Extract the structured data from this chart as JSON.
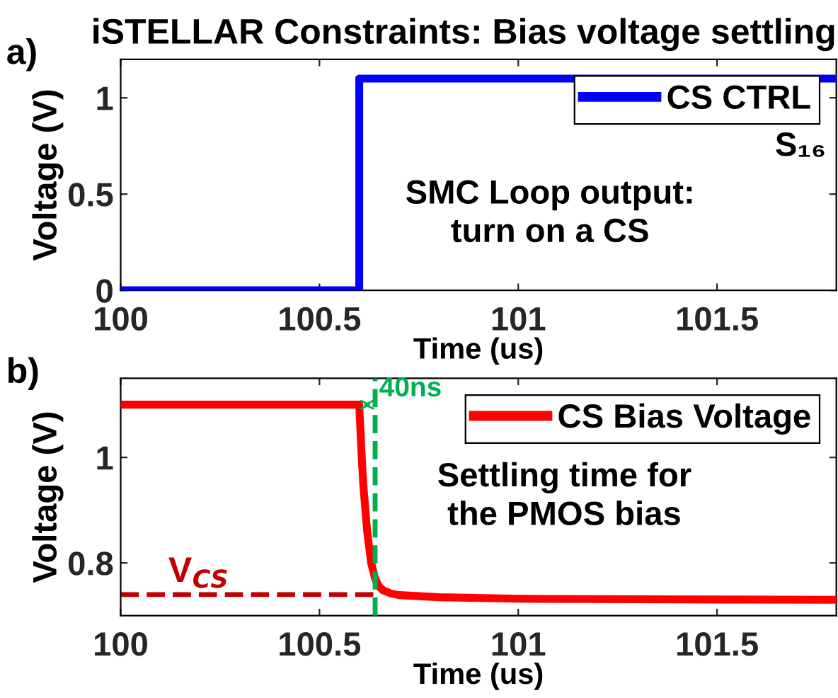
{
  "chart_data": [
    {
      "type": "line",
      "title": "iSTELLAR Constraints: Bias voltage settling",
      "xlabel": "Time (us)",
      "ylabel": "Voltage (V)",
      "x": [
        100,
        100.6,
        100.6,
        101.8
      ],
      "series": [
        {
          "name": "CS CTRL",
          "color": "#0000ff",
          "values": [
            0,
            0,
            1.1,
            1.1
          ]
        }
      ],
      "xlim": [
        100,
        101.8
      ],
      "xticks": [
        100,
        100.5,
        101,
        101.5
      ],
      "ylim": [
        0,
        1.2
      ],
      "yticks": [
        0,
        0.5,
        1
      ],
      "legend": "top right",
      "grid": false,
      "line_style": "solid",
      "marker": "none",
      "annotations": [
        "a)",
        {
          "text": "S₁₆"
        },
        "SMC Loop output:\nturn on a CS"
      ]
    },
    {
      "type": "line",
      "xlabel": "Time (us)",
      "ylabel": "Voltage (V)",
      "x": [
        100,
        100.6,
        100.605,
        100.61,
        100.62,
        100.63,
        100.64,
        100.65,
        100.66,
        100.68,
        100.7,
        100.8,
        101,
        101.3,
        101.8
      ],
      "series": [
        {
          "name": "CS Bias Voltage",
          "color": "#ff0000",
          "values": [
            1.1,
            1.1,
            1.02,
            0.95,
            0.86,
            0.8,
            0.77,
            0.755,
            0.748,
            0.742,
            0.739,
            0.735,
            0.732,
            0.731,
            0.73
          ]
        }
      ],
      "xlim": [
        100,
        101.8
      ],
      "xticks": [
        100,
        100.5,
        101,
        101.5
      ],
      "ylim": [
        0.7,
        1.15
      ],
      "yticks": [
        0.8,
        1
      ],
      "legend": "top right",
      "grid": false,
      "line_style": "solid",
      "marker": "none",
      "ref_lines": [
        {
          "axis": "y",
          "value": 0.74,
          "label": "V$_{CS}$",
          "color": "#c00000",
          "line_style": "dashed"
        },
        {
          "axis": "x",
          "value": 100.64,
          "label": "40ns",
          "color": "#00b050",
          "line_style": "dashed"
        }
      ],
      "annotations": [
        "b)",
        "Settling time for\nthe PMOS bias"
      ]
    }
  ]
}
